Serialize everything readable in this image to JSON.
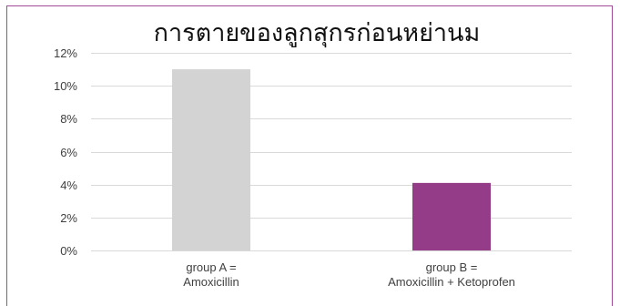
{
  "chart_data": {
    "type": "bar",
    "title": "การตายของลูกสุกรก่อนหย่านม",
    "xlabel": "",
    "ylabel": "",
    "categories": [
      [
        "group A =",
        "Amoxicillin"
      ],
      [
        "group B =",
        "Amoxicillin + Ketoprofen"
      ]
    ],
    "values": [
      11,
      4.1
    ],
    "bar_colors": [
      "#d3d3d3",
      "#953c88"
    ],
    "ylim": [
      0,
      12
    ],
    "y_ticks": [
      0,
      2,
      4,
      6,
      8,
      10,
      12
    ],
    "y_tick_labels": [
      "0%",
      "2%",
      "4%",
      "6%",
      "8%",
      "10%",
      "12%"
    ],
    "grid": true,
    "legend": "none"
  },
  "colors": {
    "frame": "#a04a9a",
    "grid": "#d9d9d9"
  }
}
